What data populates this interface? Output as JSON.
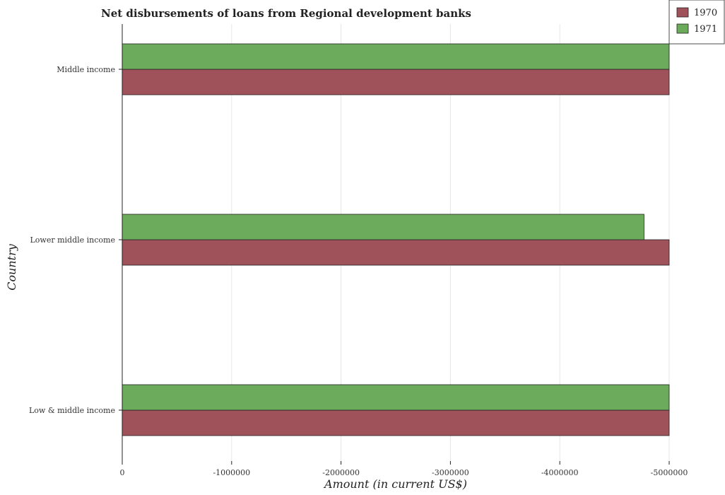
{
  "chart_data": {
    "type": "bar",
    "orientation": "horizontal",
    "title": "Net disbursements of loans from Regional development banks",
    "xlabel": "Amount (in current US$)",
    "ylabel": "Country",
    "categories": [
      "Low & middle income",
      "Lower middle income",
      "Middle income"
    ],
    "series": [
      {
        "name": "1970",
        "color": "#a0525a",
        "values": [
          -5000000,
          -5000000,
          -5000000
        ]
      },
      {
        "name": "1971",
        "color": "#6cab5b",
        "values": [
          -5000000,
          -4770000,
          -5000000
        ]
      }
    ],
    "xlim": [
      0,
      -5000000
    ],
    "xticks": [
      0,
      -1000000,
      -2000000,
      -3000000,
      -4000000,
      -5000000
    ],
    "xtick_labels": [
      "0",
      "-1000000",
      "-2000000",
      "-3000000",
      "-4000000",
      "-5000000"
    ],
    "grid": true,
    "legend_position": "top-right"
  }
}
